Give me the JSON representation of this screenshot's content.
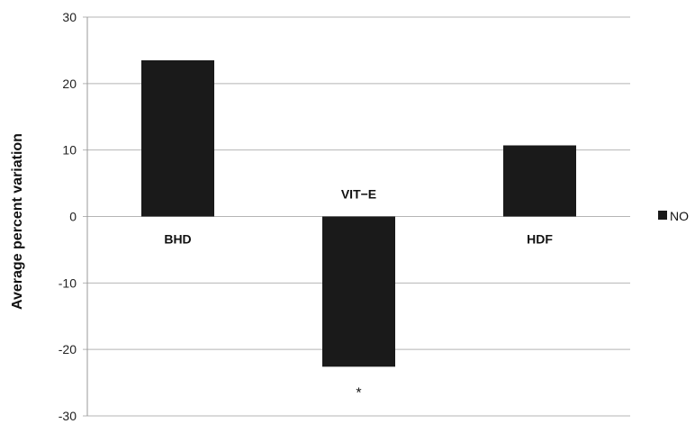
{
  "chart_data": {
    "type": "bar",
    "categories": [
      "BHD",
      "VIT−E",
      "HDF"
    ],
    "series": [
      {
        "name": "NO",
        "values": [
          23.5,
          -22.6,
          10.7
        ]
      }
    ],
    "ylabel": "Average percent variation",
    "xlabel": "",
    "ylim": [
      -30,
      30
    ],
    "yticks": [
      "30",
      "20",
      "10",
      "0",
      "-10",
      "-20",
      "-30"
    ],
    "grid": true,
    "legend_position": "right",
    "annotations": [
      {
        "category": "VIT−E",
        "text": "*"
      }
    ],
    "colors": {
      "bar": "#1a1a1a",
      "grid": "#b5b5b5",
      "axis": "#9a9a9a"
    }
  }
}
